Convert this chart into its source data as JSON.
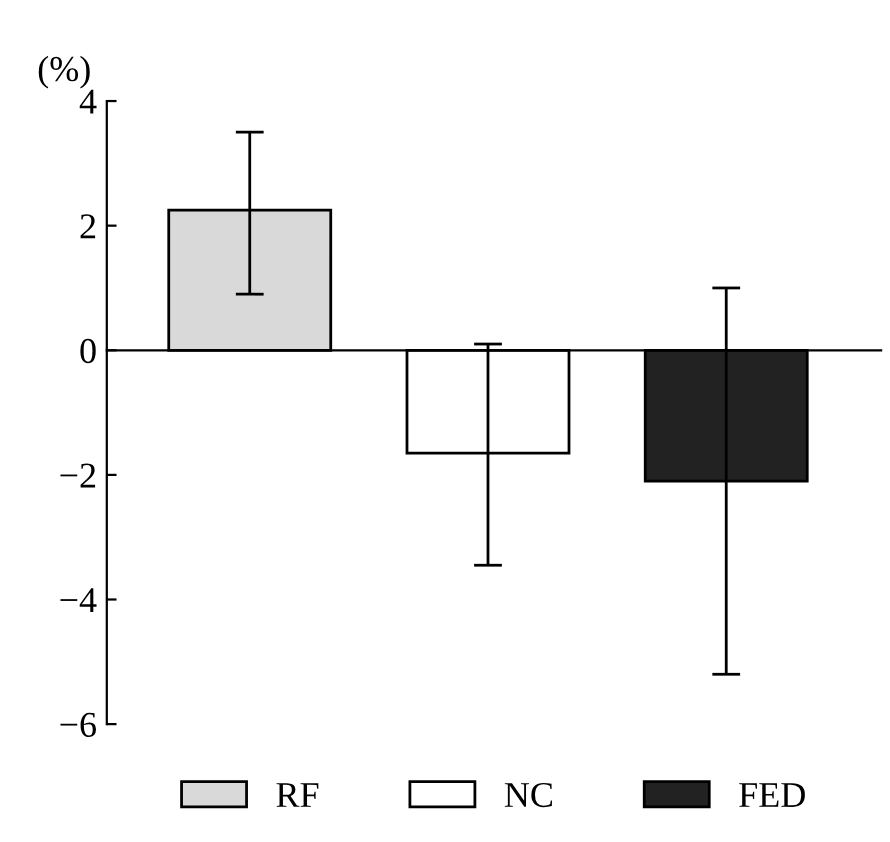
{
  "chart_data": {
    "type": "bar",
    "ylabel": "(%)",
    "categories": [
      null,
      null,
      null
    ],
    "series": [
      {
        "name": "RF",
        "color": "#d9d9d9",
        "values": [
          2.25,
          null,
          null
        ],
        "errors": [
          [
            0.9,
            3.5
          ],
          null,
          null
        ]
      },
      {
        "name": "NC",
        "color": "#ffffff",
        "values": [
          null,
          -1.65,
          null
        ],
        "errors": [
          null,
          [
            -3.45,
            0.1
          ],
          null
        ]
      },
      {
        "name": "FED",
        "color": "#222222",
        "values": [
          null,
          null,
          -2.1
        ],
        "errors": [
          null,
          null,
          [
            -5.2,
            1.0
          ]
        ]
      }
    ],
    "ylim": [
      -6,
      4
    ],
    "yticks": [
      -6,
      -4,
      -2,
      0,
      2,
      4
    ],
    "legend": "bottom"
  }
}
